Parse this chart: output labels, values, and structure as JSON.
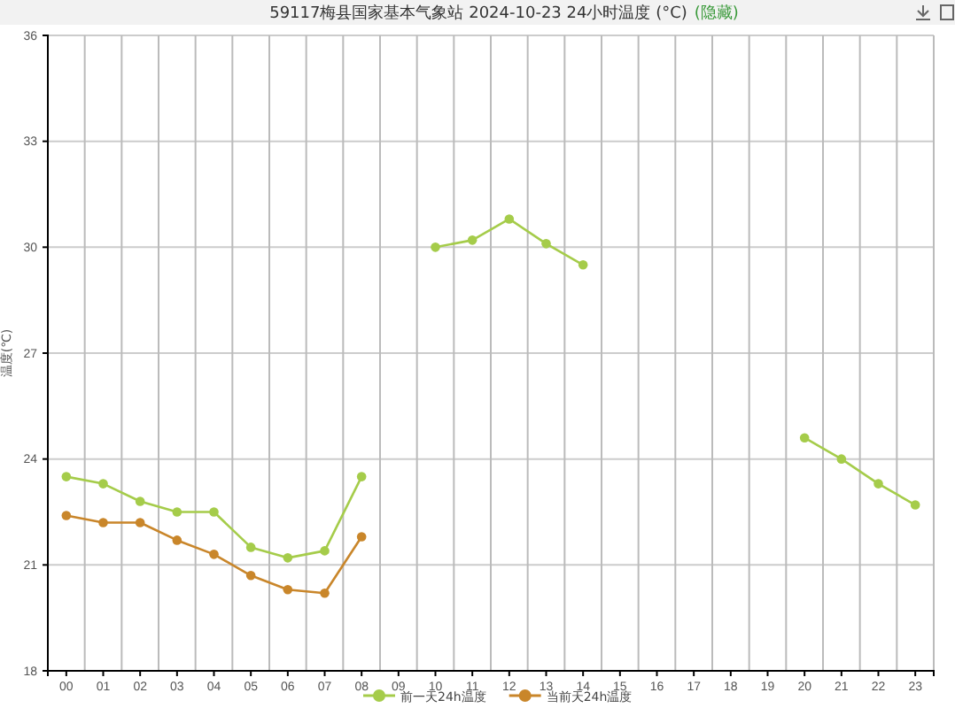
{
  "chart_data": {
    "type": "line",
    "title": "59117梅县国家基本气象站  2024-10-23  24小时温度 (°C)",
    "ylabel": "温度(℃)",
    "annotations": [
      "(隐藏)"
    ],
    "categories": [
      "00",
      "01",
      "02",
      "03",
      "04",
      "05",
      "06",
      "07",
      "08",
      "09",
      "10",
      "11",
      "12",
      "13",
      "14",
      "15",
      "16",
      "17",
      "18",
      "19",
      "20",
      "21",
      "22",
      "23"
    ],
    "series": [
      {
        "name": "前一天24h温度",
        "color": "#a5cc4a",
        "values": [
          23.5,
          23.3,
          22.8,
          22.5,
          22.5,
          21.5,
          21.2,
          21.4,
          23.5,
          null,
          30.0,
          30.2,
          30.8,
          30.1,
          29.5,
          null,
          null,
          null,
          null,
          null,
          24.6,
          24.0,
          23.3,
          22.7
        ]
      },
      {
        "name": "当前天24h温度",
        "color": "#c9862a",
        "values": [
          22.4,
          22.2,
          22.2,
          21.7,
          21.3,
          20.7,
          20.3,
          20.2,
          21.8,
          null,
          null,
          null,
          null,
          null,
          null,
          null,
          null,
          null,
          null,
          null,
          null,
          null,
          null,
          null
        ]
      }
    ],
    "ylim": [
      18,
      36
    ],
    "yticks": [
      18,
      21,
      24,
      27,
      30,
      33,
      36
    ],
    "grid": true,
    "legend": "bottom",
    "marker": "circle",
    "line_style": "solid"
  }
}
